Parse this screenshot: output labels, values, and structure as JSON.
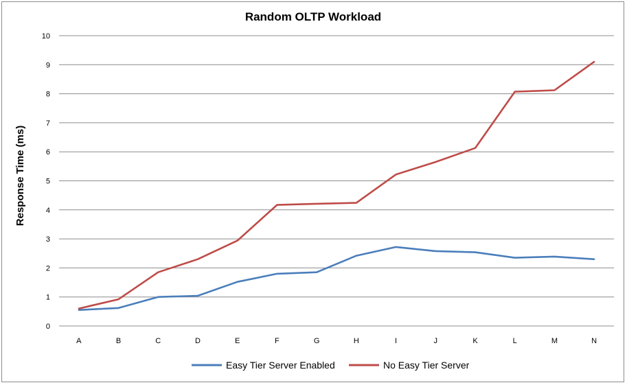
{
  "chart_data": {
    "type": "line",
    "title": "Random OLTP Workload",
    "xlabel": "",
    "ylabel": "Response Time (ms)",
    "ylim": [
      0,
      10
    ],
    "yticks": [
      "0",
      "1",
      "2",
      "3",
      "4",
      "5",
      "6",
      "7",
      "8",
      "9",
      "10"
    ],
    "categories": [
      "A",
      "B",
      "C",
      "D",
      "E",
      "F",
      "G",
      "H",
      "I",
      "J",
      "K",
      "L",
      "M",
      "N"
    ],
    "grid": true,
    "legend_position": "bottom",
    "series": [
      {
        "name": "Easy Tier Server Enabled",
        "color": "#4a7ebb",
        "values": [
          0.55,
          0.62,
          1.0,
          1.04,
          1.52,
          1.8,
          1.85,
          2.42,
          2.72,
          2.58,
          2.54,
          2.35,
          2.39,
          2.3
        ]
      },
      {
        "name": "No Easy Tier Server",
        "color": "#be4b48",
        "values": [
          0.6,
          0.92,
          1.85,
          2.3,
          2.94,
          4.17,
          4.21,
          4.24,
          5.22,
          5.65,
          6.13,
          8.07,
          8.12,
          9.1
        ]
      }
    ]
  }
}
